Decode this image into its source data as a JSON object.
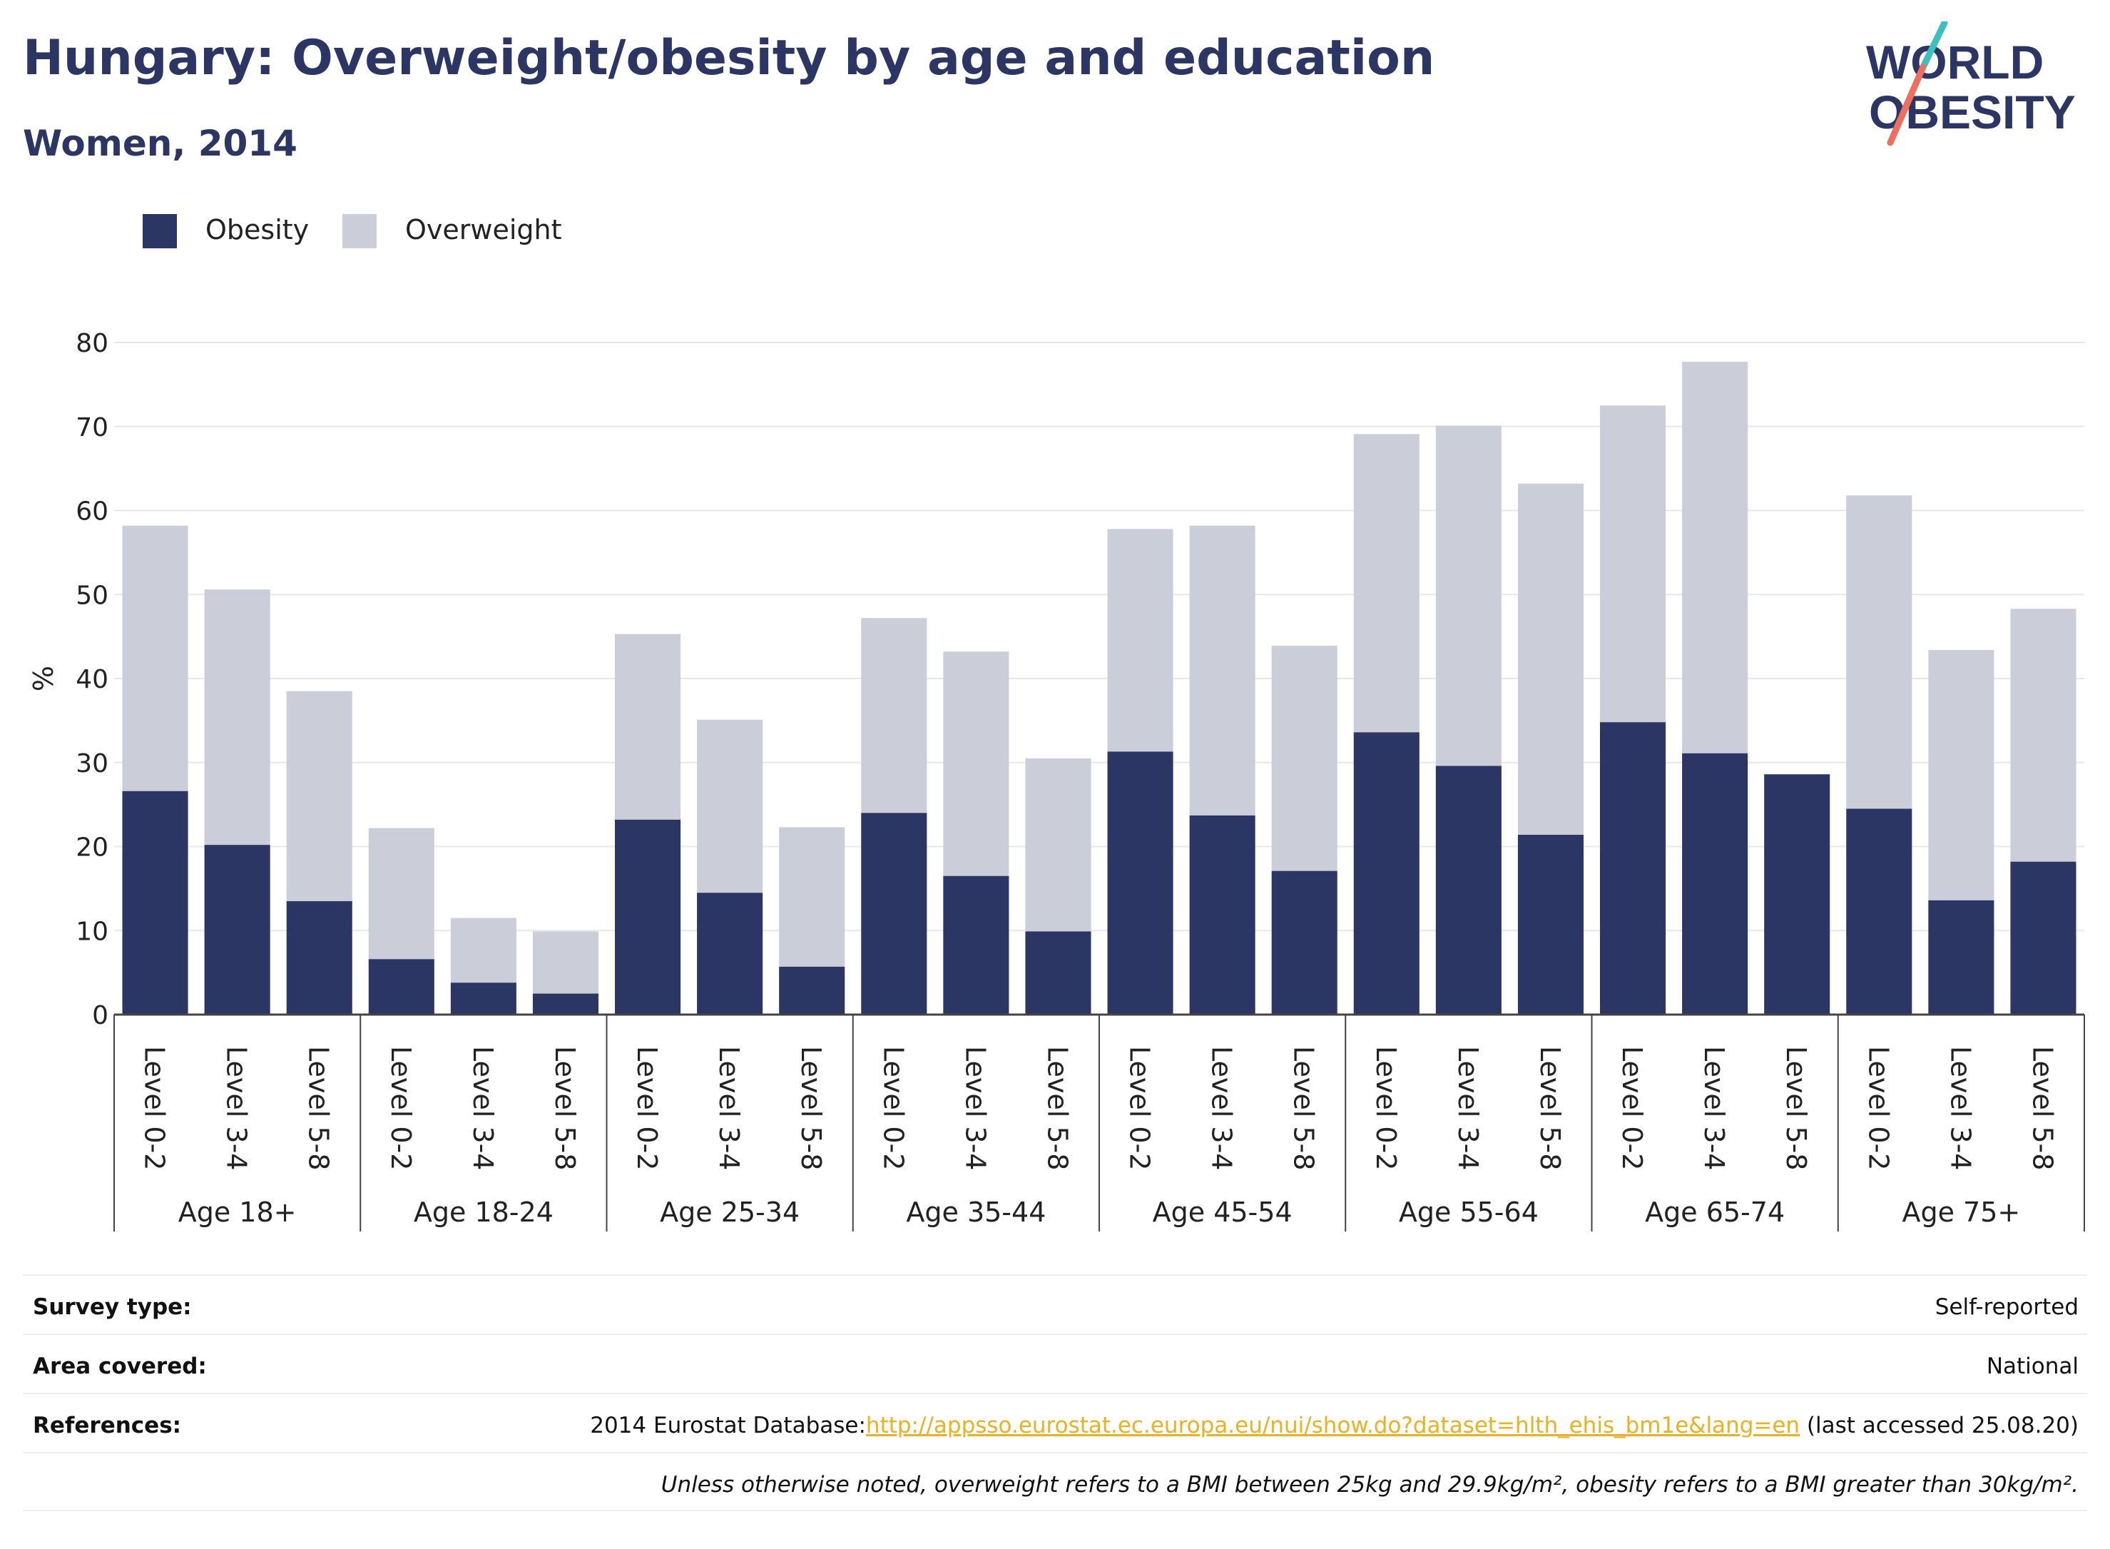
{
  "title": "Hungary: Overweight/obesity by age and education",
  "subtitle": "Women, 2014",
  "logo": {
    "line1": "WORLD",
    "line2": "OBESITY"
  },
  "colors": {
    "obesity": "#2b3664",
    "overweight": "#cbcdd8",
    "accent_teal": "#3bbfbf",
    "accent_coral": "#ef6f5e",
    "link": "#f0b01e"
  },
  "chart_data": {
    "type": "bar",
    "stacked": true,
    "ylabel": "%",
    "ylim": [
      0,
      80
    ],
    "yticks": [
      0,
      10,
      20,
      30,
      40,
      50,
      60,
      70,
      80
    ],
    "grid": true,
    "legend_position": "top-left",
    "groups": [
      {
        "label": "Age 18+",
        "categories": [
          "Level 0-2",
          "Level 3-4",
          "Level 5-8"
        ]
      },
      {
        "label": "Age 18-24",
        "categories": [
          "Level 0-2",
          "Level 3-4",
          "Level 5-8"
        ]
      },
      {
        "label": "Age 25-34",
        "categories": [
          "Level 0-2",
          "Level 3-4",
          "Level 5-8"
        ]
      },
      {
        "label": "Age 35-44",
        "categories": [
          "Level 0-2",
          "Level 3-4",
          "Level 5-8"
        ]
      },
      {
        "label": "Age 45-54",
        "categories": [
          "Level 0-2",
          "Level 3-4",
          "Level 5-8"
        ]
      },
      {
        "label": "Age 55-64",
        "categories": [
          "Level 0-2",
          "Level 3-4",
          "Level 5-8"
        ]
      },
      {
        "label": "Age 65-74",
        "categories": [
          "Level 0-2",
          "Level 3-4",
          "Level 5-8"
        ]
      },
      {
        "label": "Age 75+",
        "categories": [
          "Level 0-2",
          "Level 3-4",
          "Level 5-8"
        ]
      }
    ],
    "series": [
      {
        "name": "Obesity",
        "values": [
          26.6,
          20.2,
          13.5,
          6.6,
          3.8,
          2.5,
          23.2,
          14.5,
          5.7,
          24.0,
          16.5,
          9.9,
          31.3,
          23.7,
          17.1,
          33.6,
          29.6,
          21.4,
          34.8,
          31.1,
          28.6,
          24.5,
          13.6,
          18.2
        ]
      },
      {
        "name": "Overweight",
        "values": [
          31.6,
          30.4,
          25.0,
          15.6,
          7.7,
          7.4,
          22.1,
          20.6,
          16.6,
          23.2,
          26.7,
          20.6,
          26.5,
          34.5,
          26.8,
          35.5,
          40.5,
          41.8,
          37.7,
          46.6,
          0.0,
          37.3,
          29.8,
          30.1
        ]
      }
    ]
  },
  "info": {
    "survey_type_label": "Survey type:",
    "survey_type_value": "Self-reported",
    "area_label": "Area covered:",
    "area_value": "National",
    "references_label": "References:",
    "references_prefix": "2014 Eurostat Database:",
    "references_link": "http://appsso.eurostat.ec.europa.eu/nui/show.do?dataset=hlth_ehis_bm1e&lang=en",
    "references_suffix": " (last accessed 25.08.20)",
    "note": "Unless otherwise noted, overweight refers to a BMI between 25kg and 29.9kg/m², obesity refers to a BMI greater than 30kg/m²."
  }
}
